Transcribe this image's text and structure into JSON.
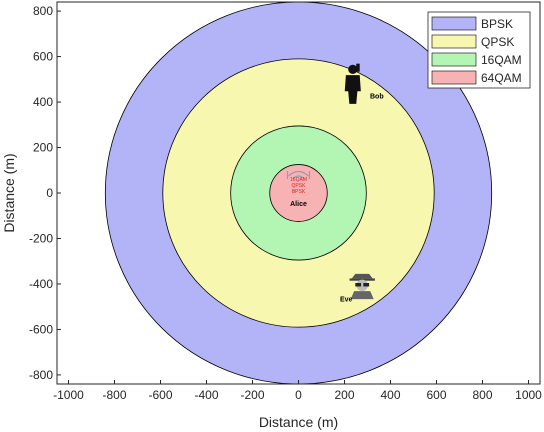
{
  "chart_data": {
    "type": "area",
    "xlabel": "Distance (m)",
    "ylabel": "Distance (m)",
    "xlim": [
      -1050,
      1050
    ],
    "ylim": [
      -840,
      840
    ],
    "xticks": [
      -1000,
      -800,
      -600,
      -400,
      -200,
      0,
      200,
      400,
      600,
      800,
      1000
    ],
    "yticks": [
      -800,
      -600,
      -400,
      -200,
      0,
      200,
      400,
      600,
      800
    ],
    "grid": false,
    "legend_position": "top-right",
    "series": [
      {
        "name": "BPSK",
        "radius": 840,
        "color": "#b3b3f7"
      },
      {
        "name": "QPSK",
        "radius": 590,
        "color": "#f7f7b0"
      },
      {
        "name": "16QAM",
        "radius": 295,
        "color": "#b3f5b3"
      },
      {
        "name": "64QAM",
        "radius": 125,
        "color": "#f7b3b3"
      }
    ],
    "annotations": [
      {
        "label": "Alice",
        "x": 0,
        "y": 0
      },
      {
        "label": "Bob",
        "x": 310,
        "y": 420
      },
      {
        "label": "Eve",
        "x": 190,
        "y": -450
      }
    ]
  }
}
